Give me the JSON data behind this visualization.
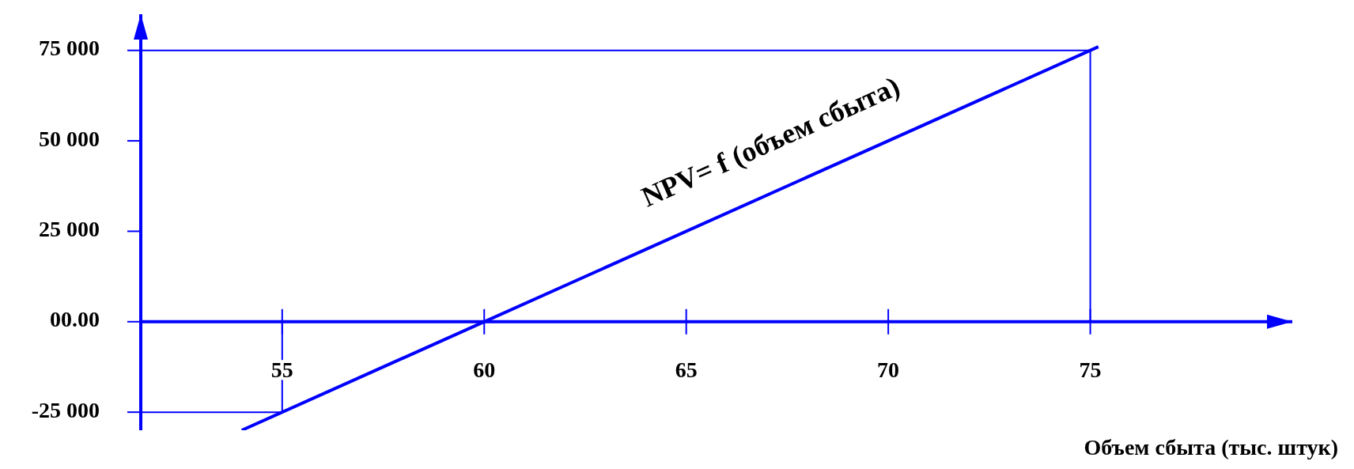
{
  "chart_data": {
    "type": "line",
    "xlabel": "Объем сбыта (тыс. штук)",
    "xlim": [
      51.5,
      80
    ],
    "ylim": [
      -30000,
      85000
    ],
    "xticks": [
      55,
      60,
      65,
      70,
      75
    ],
    "yticks": [
      {
        "value": -25000,
        "label": "-25 000"
      },
      {
        "value": 0,
        "label": "00.00"
      },
      {
        "value": 25000,
        "label": "25 000"
      },
      {
        "value": 50000,
        "label": "50 000"
      },
      {
        "value": 75000,
        "label": "75 000"
      }
    ],
    "marker": "none",
    "line_style": "solid",
    "series": [
      {
        "name": "NPV= f (объем сбыта)",
        "color": "#0000ff",
        "x": [
          54,
          75.2
        ],
        "values": [
          -30000,
          76000
        ]
      }
    ],
    "ref_lines": [
      {
        "axis": "x",
        "value": 55,
        "color": "#0000ff"
      },
      {
        "axis": "y",
        "value": -25000,
        "color": "#0000ff"
      },
      {
        "axis": "x",
        "value": 75,
        "color": "#0000ff"
      },
      {
        "axis": "y",
        "value": 75000,
        "color": "#0000ff"
      }
    ]
  }
}
